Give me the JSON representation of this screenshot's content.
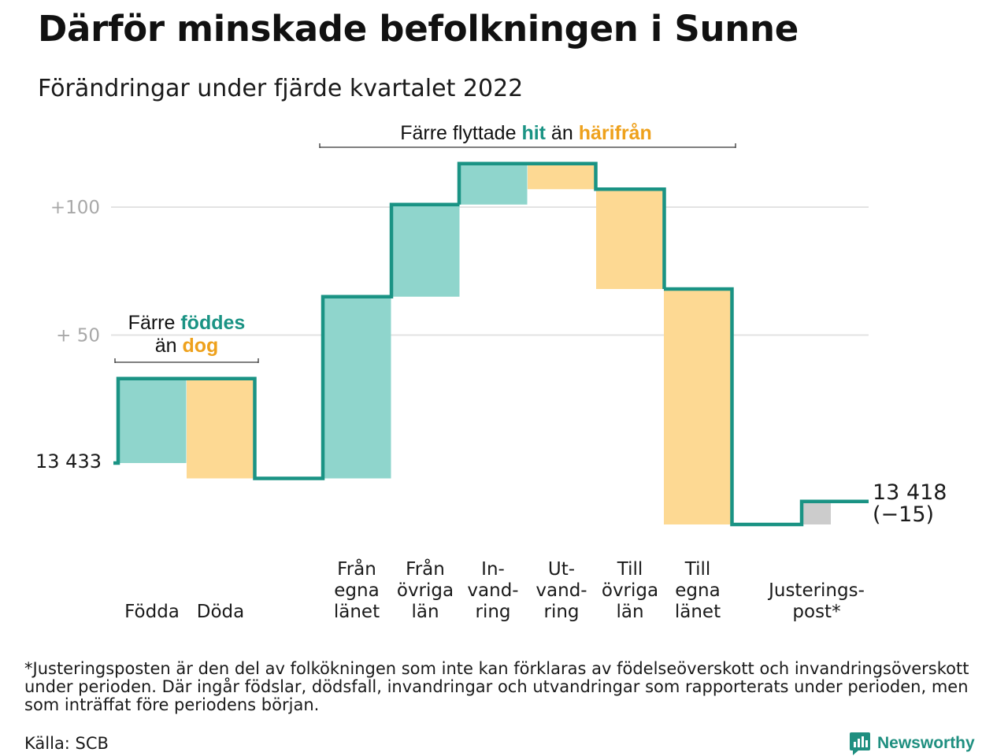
{
  "title": "Därför minskade befolkningen i Sunne",
  "subtitle": "Förändringar under fjärde kvartalet 2022",
  "footnote": "*Justeringsposten är den del av folkökningen som inte kan förklaras av födelseöverskott och invandringsöverskott under perioden. Där ingår födslar, dödsfall, invandringar och utvandringar som rapporterats under perioden, men som inträffat före periodens början.",
  "source": "Källa: SCB",
  "brand": {
    "name": "Newsworthy",
    "icon": "newsworthy-logo-icon"
  },
  "colors": {
    "increase_fill": "#8fd5cc",
    "decrease_fill": "#fdd993",
    "adjustment_fill": "#cccccc",
    "line": "#1a9384",
    "teal_text": "#1a9384",
    "orange_text": "#eea11c",
    "grid": "#e3e3e3",
    "tick_text": "#a8a8a8"
  },
  "annotations": {
    "births": {
      "prefix": "Färre",
      "highlight1": "föddes",
      "middle": "än",
      "highlight2": "dog"
    },
    "migration": {
      "prefix": "Färre flyttade",
      "highlight1": "hit",
      "middle": "än",
      "highlight2": "härifrån"
    }
  },
  "chart_data": {
    "type": "waterfall",
    "start": {
      "label": "13 433",
      "value": 13433
    },
    "end": {
      "label": "13 418",
      "change_label": "(−15)",
      "value": 13418
    },
    "yticks": [
      {
        "label": "+100",
        "offset": 100
      },
      {
        "label": "+ 50",
        "offset": 50
      }
    ],
    "ylim_offset": [
      -28,
      120
    ],
    "grid": true,
    "steps": [
      {
        "label": [
          "Födda"
        ],
        "change": 33,
        "kind": "increase"
      },
      {
        "label": [
          "Döda"
        ],
        "change": -39,
        "kind": "decrease"
      },
      {
        "label": [
          "Från",
          "egna",
          "länet"
        ],
        "change": 71,
        "kind": "increase"
      },
      {
        "label": [
          "Från",
          "övriga",
          "län"
        ],
        "change": 36,
        "kind": "increase"
      },
      {
        "label": [
          "In-",
          "vand-",
          "ring"
        ],
        "change": 16,
        "kind": "increase"
      },
      {
        "label": [
          "Ut-",
          "vand-",
          "ring"
        ],
        "change": -10,
        "kind": "decrease"
      },
      {
        "label": [
          "Till",
          "övriga",
          "län"
        ],
        "change": -39,
        "kind": "decrease"
      },
      {
        "label": [
          "Till",
          "egna",
          "länet"
        ],
        "change": -92,
        "kind": "decrease"
      },
      {
        "label": [
          "Justerings-",
          "post*"
        ],
        "change": 9,
        "kind": "adjustment"
      }
    ]
  }
}
